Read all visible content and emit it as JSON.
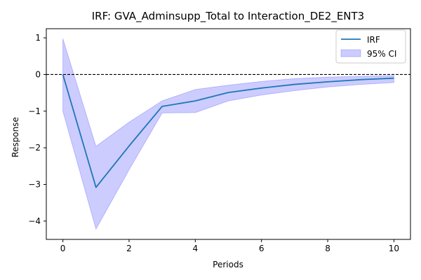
{
  "chart_data": {
    "type": "line",
    "title": "IRF: GVA_Adminsupp_Total to Interaction_DE2_ENT3",
    "xlabel": "Periods",
    "ylabel": "Response",
    "xlim": [
      -0.5,
      10.5
    ],
    "ylim": [
      -4.5,
      1.25
    ],
    "x_ticks": [
      0,
      2,
      4,
      6,
      8,
      10
    ],
    "y_ticks": [
      -4,
      -3,
      -2,
      -1,
      0,
      1
    ],
    "x_tick_labels": [
      "0",
      "2",
      "4",
      "6",
      "8",
      "10"
    ],
    "y_tick_labels": [
      "−4",
      "−3",
      "−2",
      "−1",
      "0",
      "1"
    ],
    "grid": false,
    "zero_line": {
      "y": 0,
      "style": "dashed",
      "color": "#000000"
    },
    "legend": {
      "position": "top-right",
      "entries": [
        "IRF",
        "95% CI"
      ]
    },
    "x": [
      0,
      1,
      2,
      3,
      4,
      5,
      6,
      7,
      8,
      9,
      10
    ],
    "series": [
      {
        "name": "IRF",
        "color": "#1f77b4",
        "values": [
          0.0,
          -3.08,
          -1.95,
          -0.87,
          -0.72,
          -0.49,
          -0.37,
          -0.27,
          -0.2,
          -0.14,
          -0.1
        ]
      }
    ],
    "ci_band": {
      "name": "95% CI",
      "color": "#0000ff",
      "alpha": 0.2,
      "upper": [
        0.98,
        -1.96,
        -1.3,
        -0.72,
        -0.41,
        -0.29,
        -0.19,
        -0.11,
        -0.07,
        -0.05,
        -0.03
      ],
      "lower": [
        -1.0,
        -4.22,
        -2.6,
        -1.05,
        -1.04,
        -0.72,
        -0.56,
        -0.44,
        -0.34,
        -0.27,
        -0.22
      ]
    }
  }
}
